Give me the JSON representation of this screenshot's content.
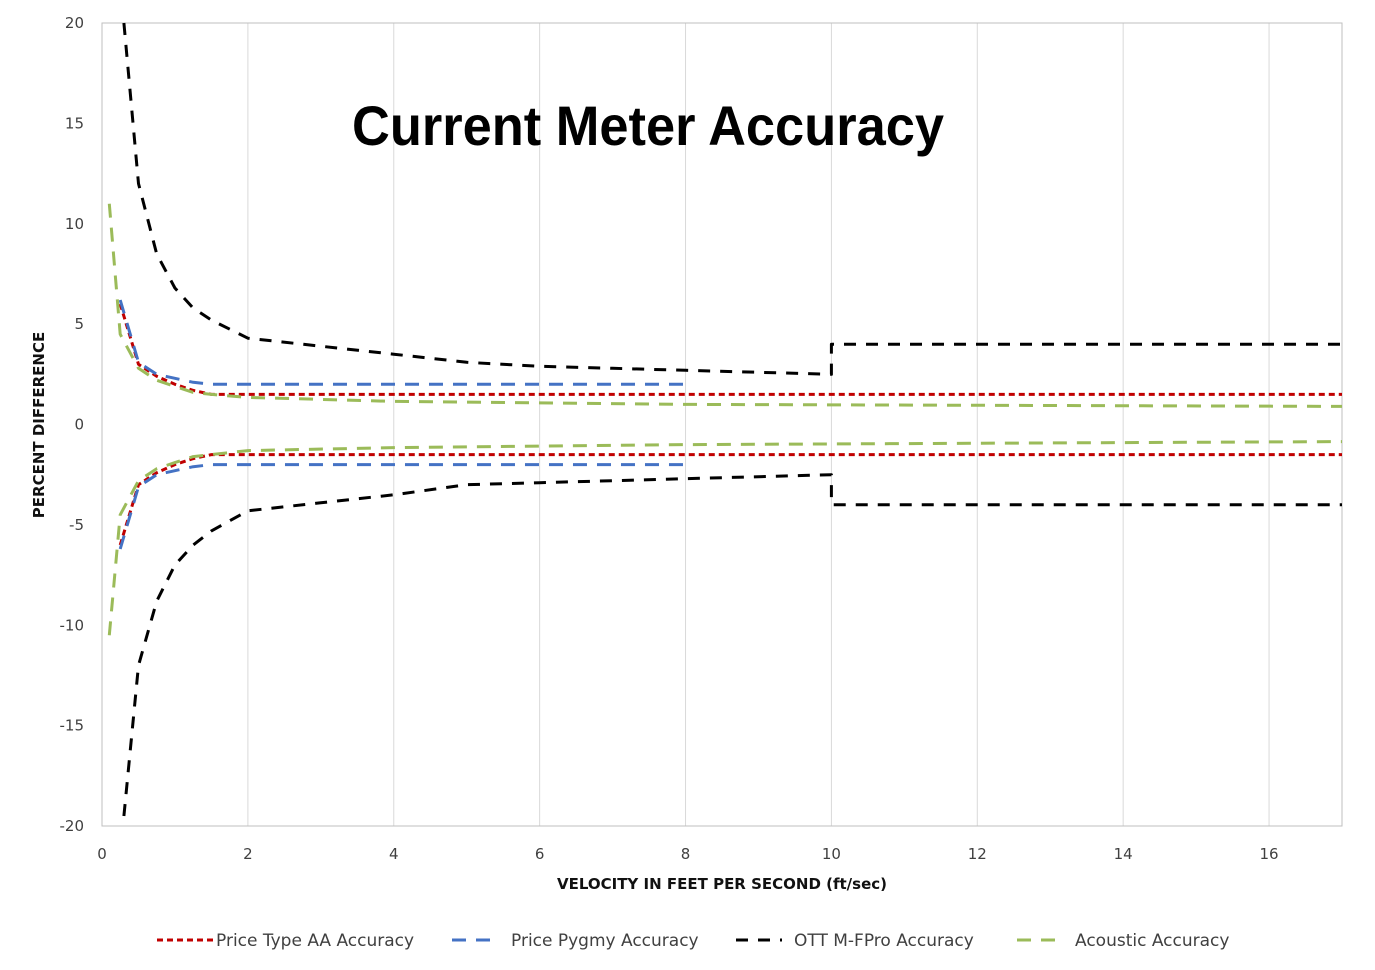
{
  "chart_data": {
    "type": "line",
    "title": "Current Meter Accuracy",
    "xlabel": "VELOCITY IN FEET PER SECOND (ft/sec)",
    "ylabel": "PERCENT DIFFERENCE",
    "xlim": [
      0,
      17
    ],
    "ylim": [
      -20,
      20
    ],
    "xticks": [
      0,
      2,
      4,
      6,
      8,
      10,
      12,
      14,
      16
    ],
    "yticks": [
      -20,
      -15,
      -10,
      -5,
      0,
      5,
      10,
      15,
      20
    ],
    "xtick_labels": [
      "0",
      "2",
      "4",
      "6",
      "8",
      "10",
      "12",
      "14",
      "16"
    ],
    "ytick_labels": [
      "-20",
      "-15",
      "-10",
      "-5",
      "0",
      "5",
      "10",
      "15",
      "20"
    ],
    "grid": "vertical",
    "legend": "bottom",
    "series": [
      {
        "name": "Price Type AA Accuracy",
        "color": "#c00000",
        "style": "short-dash",
        "upper": [
          [
            0.25,
            6.0
          ],
          [
            0.5,
            3.0
          ],
          [
            0.75,
            2.4
          ],
          [
            1.0,
            2.0
          ],
          [
            1.25,
            1.7
          ],
          [
            1.5,
            1.5
          ],
          [
            17.0,
            1.5
          ]
        ],
        "lower": [
          [
            0.25,
            -6.0
          ],
          [
            0.5,
            -3.0
          ],
          [
            0.75,
            -2.4
          ],
          [
            1.0,
            -2.0
          ],
          [
            1.25,
            -1.7
          ],
          [
            1.5,
            -1.5
          ],
          [
            17.0,
            -1.5
          ]
        ]
      },
      {
        "name": "Price Pygmy Accuracy",
        "color": "#4472c4",
        "style": "long-dash",
        "upper": [
          [
            0.25,
            6.2
          ],
          [
            0.5,
            3.1
          ],
          [
            0.75,
            2.5
          ],
          [
            1.0,
            2.3
          ],
          [
            1.25,
            2.1
          ],
          [
            1.5,
            2.0
          ],
          [
            8.0,
            2.0
          ]
        ],
        "lower": [
          [
            0.25,
            -6.2
          ],
          [
            0.5,
            -3.1
          ],
          [
            0.75,
            -2.5
          ],
          [
            1.0,
            -2.3
          ],
          [
            1.25,
            -2.1
          ],
          [
            1.5,
            -2.0
          ],
          [
            8.0,
            -2.0
          ]
        ]
      },
      {
        "name": "OTT M-FPro Accuracy",
        "color": "#000000",
        "style": "dash",
        "upper": [
          [
            0.3,
            20.0
          ],
          [
            0.5,
            12.0
          ],
          [
            0.75,
            8.5
          ],
          [
            1.0,
            6.8
          ],
          [
            1.25,
            5.8
          ],
          [
            1.5,
            5.2
          ],
          [
            2.0,
            4.3
          ],
          [
            3.0,
            3.9
          ],
          [
            4.0,
            3.5
          ],
          [
            5.0,
            3.1
          ],
          [
            6.0,
            2.9
          ],
          [
            7.0,
            2.8
          ],
          [
            8.0,
            2.7
          ],
          [
            9.0,
            2.6
          ],
          [
            10.0,
            2.5
          ],
          [
            10.0,
            4.0
          ],
          [
            17.0,
            4.0
          ]
        ],
        "lower": [
          [
            0.3,
            -19.5
          ],
          [
            0.5,
            -12.0
          ],
          [
            0.75,
            -8.8
          ],
          [
            1.0,
            -7.0
          ],
          [
            1.25,
            -6.0
          ],
          [
            1.5,
            -5.3
          ],
          [
            2.0,
            -4.3
          ],
          [
            3.0,
            -3.9
          ],
          [
            4.0,
            -3.5
          ],
          [
            5.0,
            -3.0
          ],
          [
            6.0,
            -2.9
          ],
          [
            7.0,
            -2.8
          ],
          [
            8.0,
            -2.7
          ],
          [
            9.0,
            -2.6
          ],
          [
            10.0,
            -2.5
          ],
          [
            10.0,
            -4.0
          ],
          [
            17.0,
            -4.0
          ]
        ]
      },
      {
        "name": "Acoustic Accuracy",
        "color": "#9bbb59",
        "style": "long-dash",
        "upper": [
          [
            0.1,
            11.0
          ],
          [
            0.25,
            4.5
          ],
          [
            0.5,
            2.8
          ],
          [
            0.75,
            2.2
          ],
          [
            1.0,
            1.9
          ],
          [
            1.25,
            1.6
          ],
          [
            1.5,
            1.5
          ],
          [
            2.0,
            1.35
          ],
          [
            4.0,
            1.15
          ],
          [
            8.0,
            1.0
          ],
          [
            17.0,
            0.9
          ]
        ],
        "lower": [
          [
            0.1,
            -10.5
          ],
          [
            0.25,
            -4.5
          ],
          [
            0.5,
            -2.8
          ],
          [
            0.75,
            -2.2
          ],
          [
            1.0,
            -1.9
          ],
          [
            1.25,
            -1.6
          ],
          [
            1.5,
            -1.5
          ],
          [
            2.0,
            -1.3
          ],
          [
            4.0,
            -1.15
          ],
          [
            8.0,
            -1.0
          ],
          [
            17.0,
            -0.85
          ]
        ]
      }
    ]
  }
}
